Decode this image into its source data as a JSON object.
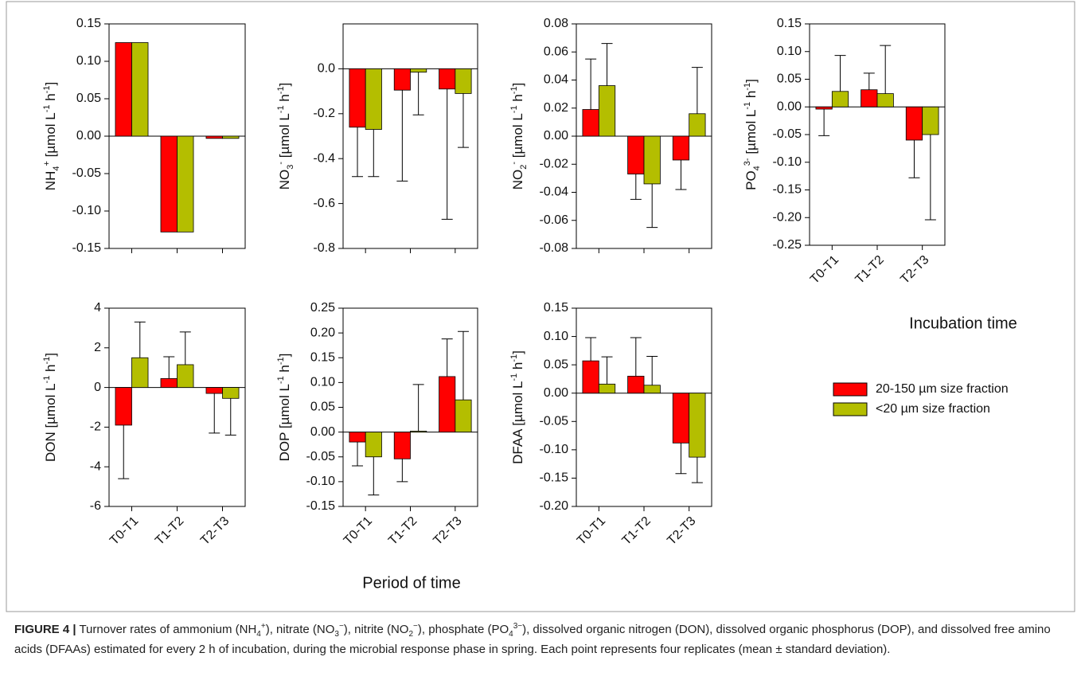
{
  "legend": [
    {
      "name": "20-150 µm size fraction",
      "color": "#ff0000"
    },
    {
      "name": "<20 µm size fraction",
      "color": "#b4be00"
    }
  ],
  "xlabel_bottom": "Period of time",
  "xlabel_side": "Incubation time",
  "caption": [
    [
      "FIGURE 4 |",
      "bold"
    ],
    [
      " Turnover rates of ammonium (NH",
      "normal"
    ],
    [
      "4",
      "sub"
    ],
    [
      "+",
      "sup"
    ],
    [
      "), nitrate (NO",
      "normal"
    ],
    [
      "3",
      "sub"
    ],
    [
      "−",
      "sup"
    ],
    [
      "), nitrite (NO",
      "normal"
    ],
    [
      "2",
      "sub"
    ],
    [
      "−",
      "sup"
    ],
    [
      "), phosphate (PO",
      "normal"
    ],
    [
      "4",
      "sub"
    ],
    [
      "3−",
      "sup"
    ],
    [
      "), dissolved organic nitrogen (DON), dissolved organic phosphorus (DOP), and dissolved free amino acids (DFAAs) estimated for every 2 h of incubation, during the microbial response phase in spring. Each point represents four replicates (mean ± standard deviation).",
      "normal"
    ]
  ],
  "chart_data": [
    {
      "type": "bar",
      "ylabel": [
        [
          "NH",
          "normal"
        ],
        [
          "4",
          "sub"
        ],
        [
          "+",
          "sup"
        ],
        [
          " [µmol L",
          "normal"
        ],
        [
          "-1",
          "sup"
        ],
        [
          " h",
          "normal"
        ],
        [
          "-1",
          "sup"
        ],
        [
          "]",
          "normal"
        ]
      ],
      "categories": [
        null,
        null,
        null
      ],
      "ylim": [
        -0.15,
        0.15
      ],
      "yticks": [
        0.15,
        {
          "value": 0.1,
          "label": "0.10"
        },
        0.05,
        {
          "value": 0,
          "label": "0.00"
        },
        -0.05,
        {
          "value": -0.1,
          "label": "-0.10"
        },
        -0.15
      ],
      "series": [
        {
          "values": [
            0.125,
            -0.128,
            -0.003
          ]
        },
        {
          "values": [
            0.125,
            -0.128,
            -0.003
          ]
        }
      ]
    },
    {
      "type": "bar",
      "ylabel": [
        [
          "NO",
          "normal"
        ],
        [
          "3",
          "sub"
        ],
        [
          "-",
          "sup"
        ],
        [
          " [µmol L",
          "normal"
        ],
        [
          "-1",
          "sup"
        ],
        [
          " h",
          "normal"
        ],
        [
          "-1",
          "sup"
        ],
        [
          "]",
          "normal"
        ]
      ],
      "categories": [
        null,
        null,
        null
      ],
      "ylim": [
        -0.8,
        0.2
      ],
      "yticks": [
        {
          "value": 0,
          "label": "0.0"
        },
        -0.2,
        -0.4,
        -0.6,
        -0.8
      ],
      "series": [
        {
          "values": [
            -0.26,
            -0.095,
            -0.09
          ],
          "errors": [
            0.22,
            0.405,
            0.58
          ]
        },
        {
          "values": [
            -0.27,
            -0.015,
            -0.11
          ],
          "errors": [
            0.21,
            0.19,
            0.24
          ]
        }
      ]
    },
    {
      "type": "bar",
      "ylabel": [
        [
          "NO",
          "normal"
        ],
        [
          "2",
          "sub"
        ],
        [
          "-",
          "sup"
        ],
        [
          " [µmol L",
          "normal"
        ],
        [
          "-1",
          "sup"
        ],
        [
          " h",
          "normal"
        ],
        [
          "-1",
          "sup"
        ],
        [
          "]",
          "normal"
        ]
      ],
      "categories": [
        null,
        null,
        null
      ],
      "ylim": [
        -0.08,
        0.08
      ],
      "yticks": [
        0.08,
        0.06,
        0.04,
        0.02,
        {
          "value": 0,
          "label": "0.00"
        },
        -0.02,
        -0.04,
        -0.06,
        -0.08
      ],
      "series": [
        {
          "values": [
            0.019,
            -0.027,
            -0.017
          ],
          "errors": [
            0.036,
            0.018,
            0.021
          ]
        },
        {
          "values": [
            0.036,
            -0.034,
            0.016
          ],
          "errors": [
            0.03,
            0.031,
            0.033
          ]
        }
      ]
    },
    {
      "type": "bar",
      "ylabel": [
        [
          "PO",
          "normal"
        ],
        [
          "4",
          "sub"
        ],
        [
          "3-",
          "sup"
        ],
        [
          " [µmol L",
          "normal"
        ],
        [
          "-1",
          "sup"
        ],
        [
          " h",
          "normal"
        ],
        [
          "-1",
          "sup"
        ],
        [
          "]",
          "normal"
        ]
      ],
      "categories": [
        "T0-T1",
        "T1-T2",
        "T2-T3"
      ],
      "ylim": [
        -0.25,
        0.15
      ],
      "yticks": [
        0.15,
        {
          "value": 0.1,
          "label": "0.10"
        },
        0.05,
        {
          "value": 0,
          "label": "0.00"
        },
        -0.05,
        {
          "value": -0.1,
          "label": "-0.10"
        },
        -0.15,
        {
          "value": -0.2,
          "label": "-0.20"
        },
        -0.25
      ],
      "series": [
        {
          "values": [
            -0.004,
            0.031,
            -0.06
          ],
          "errors": [
            0.048,
            0.03,
            0.068
          ]
        },
        {
          "values": [
            0.028,
            0.024,
            -0.05
          ],
          "errors": [
            0.065,
            0.087,
            0.154
          ]
        }
      ]
    },
    {
      "type": "bar",
      "ylabel": [
        [
          "DON [µmol L",
          "normal"
        ],
        [
          "-1",
          "sup"
        ],
        [
          " h",
          "normal"
        ],
        [
          "-1",
          "sup"
        ],
        [
          "]",
          "normal"
        ]
      ],
      "categories": [
        "T0-T1",
        "T1-T2",
        "T2-T3"
      ],
      "ylim": [
        -6,
        4
      ],
      "yticks": [
        4,
        2,
        0,
        -2,
        -4,
        -6
      ],
      "series": [
        {
          "values": [
            -1.9,
            0.45,
            -0.3
          ],
          "errors": [
            2.7,
            1.1,
            2.0
          ]
        },
        {
          "values": [
            1.5,
            1.15,
            -0.55
          ],
          "errors": [
            1.8,
            1.65,
            1.85
          ]
        }
      ]
    },
    {
      "type": "bar",
      "ylabel": [
        [
          "DOP [µmol L",
          "normal"
        ],
        [
          "-1",
          "sup"
        ],
        [
          " h",
          "normal"
        ],
        [
          "-1",
          "sup"
        ],
        [
          "]",
          "normal"
        ]
      ],
      "categories": [
        "T0-T1",
        "T1-T2",
        "T2-T3"
      ],
      "ylim": [
        -0.15,
        0.25
      ],
      "yticks": [
        0.25,
        {
          "value": 0.2,
          "label": "0.20"
        },
        0.15,
        {
          "value": 0.1,
          "label": "0.10"
        },
        0.05,
        {
          "value": 0,
          "label": "0.00"
        },
        -0.05,
        {
          "value": -0.1,
          "label": "-0.10"
        },
        -0.15
      ],
      "series": [
        {
          "values": [
            -0.02,
            -0.054,
            0.112
          ],
          "errors": [
            0.048,
            0.046,
            0.076
          ]
        },
        {
          "values": [
            -0.05,
            0.002,
            0.065
          ],
          "errors": [
            0.077,
            0.094,
            0.138
          ]
        }
      ]
    },
    {
      "type": "bar",
      "ylabel": [
        [
          "DFAA [µmol L",
          "normal"
        ],
        [
          "-1",
          "sup"
        ],
        [
          " h",
          "normal"
        ],
        [
          "-1",
          "sup"
        ],
        [
          "]",
          "normal"
        ]
      ],
      "categories": [
        "T0-T1",
        "T1-T2",
        "T2-T3"
      ],
      "ylim": [
        -0.2,
        0.15
      ],
      "yticks": [
        0.15,
        {
          "value": 0.1,
          "label": "0.10"
        },
        0.05,
        {
          "value": 0,
          "label": "0.00"
        },
        -0.05,
        {
          "value": -0.1,
          "label": "-0.10"
        },
        -0.15,
        {
          "value": -0.2,
          "label": "-0.20"
        }
      ],
      "series": [
        {
          "values": [
            0.057,
            0.03,
            -0.088
          ],
          "errors": [
            0.041,
            0.068,
            0.054
          ]
        },
        {
          "values": [
            0.016,
            0.014,
            -0.113
          ],
          "errors": [
            0.048,
            0.051,
            0.045
          ]
        }
      ]
    }
  ]
}
